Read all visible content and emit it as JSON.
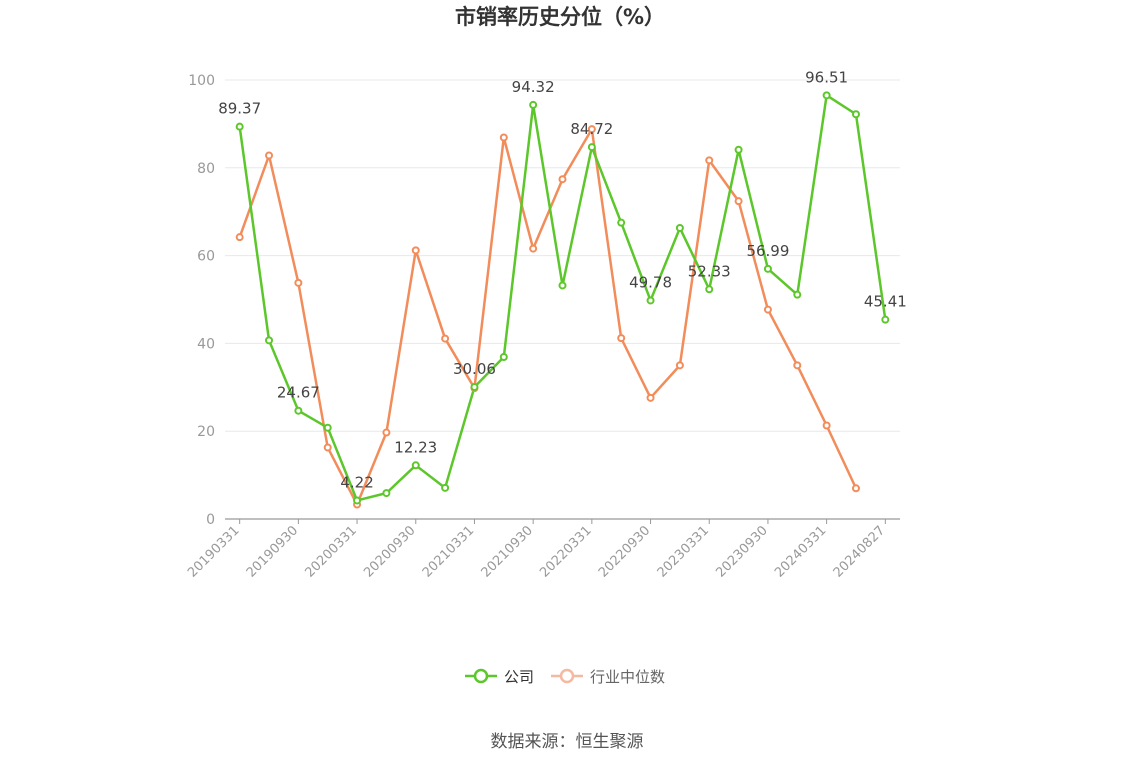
{
  "chart_data": {
    "type": "line",
    "title": "市销率历史分位（%）",
    "source": "数据来源：恒生聚源",
    "ylim": [
      0,
      100
    ],
    "yticks": [
      0,
      20,
      40,
      60,
      80,
      100
    ],
    "x": [
      "20190331",
      "20190630",
      "20190930",
      "20191231",
      "20200331",
      "20200630",
      "20200930",
      "20201231",
      "20210331",
      "20210630",
      "20210930",
      "20211231",
      "20220331",
      "20220630",
      "20220930",
      "20221231",
      "20230331",
      "20230630",
      "20230930",
      "20231231",
      "20240331",
      "20240630",
      "20240827"
    ],
    "xtick_labels": [
      "20190331",
      "20190930",
      "20200331",
      "20200930",
      "20210331",
      "20210930",
      "20220331",
      "20220930",
      "20230331",
      "20230930",
      "20240331",
      "20240827"
    ],
    "xtick_indices": [
      0,
      2,
      4,
      6,
      8,
      10,
      12,
      14,
      16,
      18,
      20,
      22
    ],
    "grid": true,
    "legend_position": "bottom",
    "series": [
      {
        "name": "公司",
        "color": "#5cc72a",
        "values": [
          89.37,
          40.7,
          24.67,
          20.8,
          4.22,
          5.9,
          12.23,
          7.1,
          30.06,
          36.9,
          94.32,
          53.2,
          84.72,
          67.5,
          49.78,
          66.3,
          52.33,
          84.1,
          56.99,
          51.1,
          96.51,
          92.2,
          45.41
        ],
        "labels": {
          "0": "89.37",
          "2": "24.67",
          "4": "4.22",
          "6": "12.23",
          "8": "30.06",
          "10": "94.32",
          "12": "84.72",
          "14": "49.78",
          "16": "52.33",
          "18": "56.99",
          "20": "96.51",
          "22": "45.41"
        }
      },
      {
        "name": "行业中位数",
        "color": "#f28c5a",
        "legend_color": "#f6b8a0",
        "values": [
          64.2,
          82.8,
          53.8,
          16.3,
          3.3,
          19.7,
          61.2,
          41.1,
          29.8,
          86.9,
          61.6,
          77.4,
          88.8,
          41.2,
          27.6,
          35.0,
          81.7,
          72.4,
          47.7,
          35.0,
          21.3,
          7.0,
          null
        ]
      }
    ]
  }
}
